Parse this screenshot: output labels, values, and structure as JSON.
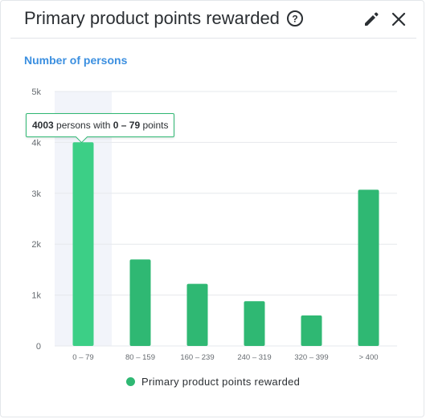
{
  "header": {
    "title": "Primary product points rewarded",
    "help_icon": "help-circle-icon",
    "edit_icon": "pencil-icon",
    "close_icon": "close-icon"
  },
  "chart_data": {
    "type": "bar",
    "title": "Number of persons",
    "categories": [
      "0 – 79",
      "80 – 159",
      "160 – 239",
      "240 – 319",
      "320 – 399",
      "> 400"
    ],
    "series": [
      {
        "name": "Primary product points rewarded",
        "values": [
          4003,
          1700,
          1220,
          880,
          600,
          3070
        ]
      }
    ],
    "ylim": [
      0,
      5000
    ],
    "yticks": [
      {
        "value": 0,
        "label": "0"
      },
      {
        "value": 1000,
        "label": "1k"
      },
      {
        "value": 2000,
        "label": "2k"
      },
      {
        "value": 3000,
        "label": "3k"
      },
      {
        "value": 4000,
        "label": "4k"
      },
      {
        "value": 5000,
        "label": "5k"
      }
    ],
    "grid": true,
    "legend": "bottom-center",
    "highlighted_index": 0
  },
  "tooltip": {
    "value": "4003",
    "text_a": " persons with ",
    "range": "0 – 79",
    "text_b": " points"
  },
  "colors": {
    "bar": "#2fb873",
    "bar_highlight": "#3ccf86",
    "hover_band": "#f2f4fa",
    "grid": "#e6e8ec",
    "axis_text": "#666b70",
    "subtitle": "#3b8fe0"
  }
}
